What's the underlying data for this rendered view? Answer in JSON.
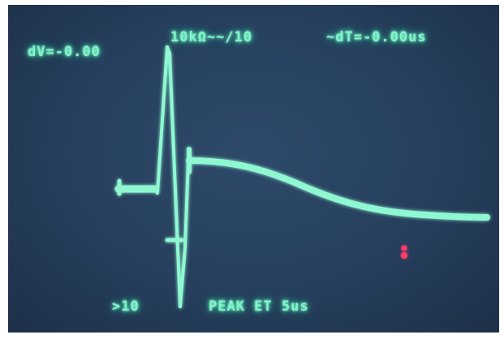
{
  "readouts": {
    "top_left": "dV=-0.00",
    "top_center": "10kΩ~~/10",
    "top_right": "~dT=-0.00us",
    "bottom_left": ">10",
    "bottom_center": "PEAK ET 5us"
  },
  "colors": {
    "phosphor": "#7df5c8",
    "screen": "#263f5d",
    "cursor": "#ff3b6b"
  },
  "icons": {
    "cursor_marker": "red-dot-icon"
  }
}
